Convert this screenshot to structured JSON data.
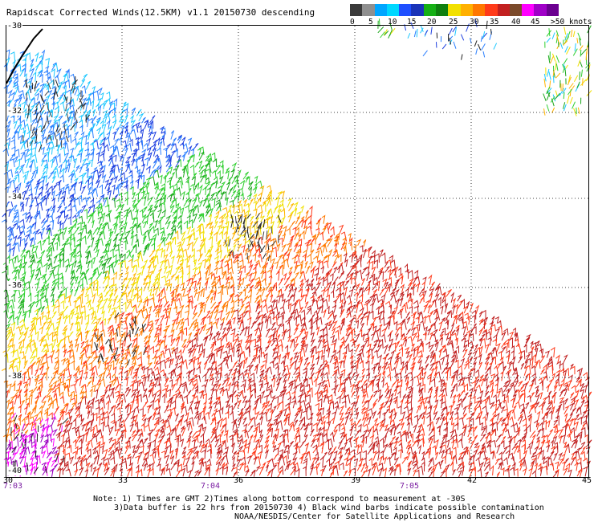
{
  "title": "Rapidscat Corrected Winds(12.5KM) v1.1 20150730 descending",
  "colorbar": {
    "colors": [
      "#3a3a3a",
      "#8f8f8f",
      "#00a6ff",
      "#00d8ff",
      "#1f4fff",
      "#1a33b8",
      "#15b015",
      "#0f7f0f",
      "#f2e000",
      "#ffb000",
      "#ff7800",
      "#ff3b1a",
      "#c22020",
      "#7a4a2a",
      "#ff00ff",
      "#a000c8",
      "#6b0090"
    ],
    "tick_labels": [
      "0",
      "5",
      "10",
      "15",
      "20",
      "25",
      "30",
      "35",
      "40",
      "45",
      ">50 knots"
    ]
  },
  "lat_labels": [
    "-30",
    "-32",
    "-34",
    "-36",
    "-38",
    "-40"
  ],
  "lon_labels": [
    "30",
    "33",
    "36",
    "39",
    "42",
    "45"
  ],
  "time_labels": [
    "7:03",
    "7:04",
    "7:05"
  ],
  "notes": {
    "line1": "Note: 1) Times are GMT 2)Times along bottom correspond to measurement at -30S",
    "line2": "3)Data buffer is 22 hrs from 20150730 4) Black wind barbs indicate possible contamination",
    "line3": "NOAA/NESDIS/Center for Satellite Applications and Research"
  }
}
